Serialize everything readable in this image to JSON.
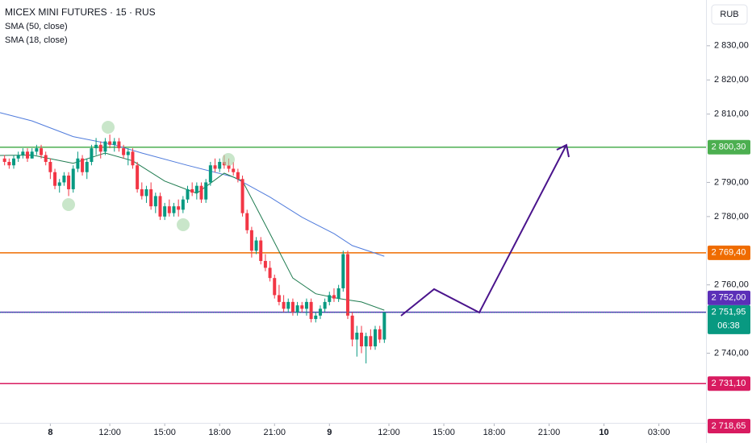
{
  "chart_data": {
    "type": "candlestick",
    "title": "MICEX MINI FUTURES · 15 · RUS",
    "currency": "RUB",
    "indicators": [
      {
        "name": "SMA (50, close)",
        "color": "#4f7bdc",
        "x": [
          -11,
          -4,
          5,
          14,
          20,
          30,
          40,
          48,
          55,
          62,
          66,
          73
        ],
        "values": [
          2810.4,
          2808,
          2803.4,
          2801,
          2798.6,
          2795,
          2791.6,
          2785.7,
          2779.8,
          2775,
          2771.5,
          2768.4
        ]
      },
      {
        "name": "SMA (18, close)",
        "color": "#1e7b4f",
        "x": [
          -11,
          -4,
          5,
          12,
          18,
          25,
          32,
          38,
          42,
          48,
          53,
          58,
          63,
          68,
          73
        ],
        "values": [
          2797.9,
          2798,
          2795.6,
          2798.6,
          2796.3,
          2790.4,
          2786.8,
          2792.7,
          2790.4,
          2775,
          2762,
          2757.4,
          2756,
          2755,
          2752.6
        ]
      }
    ],
    "up_color": "#089981",
    "down_color": "#f23645",
    "x": [
      -10,
      -9,
      -8,
      -7,
      -6,
      -5,
      -4,
      -3,
      -2,
      -1,
      0,
      1,
      2,
      3,
      4,
      5,
      6,
      7,
      8,
      9,
      10,
      11,
      12,
      13,
      14,
      15,
      16,
      17,
      18,
      19,
      20,
      21,
      22,
      23,
      24,
      25,
      26,
      27,
      28,
      29,
      30,
      31,
      32,
      33,
      34,
      35,
      36,
      37,
      38,
      39,
      40,
      41,
      42,
      43,
      44,
      45,
      46,
      47,
      48,
      49,
      50,
      51,
      52,
      53,
      54,
      55,
      56,
      57,
      58,
      59,
      60,
      61,
      62,
      63,
      64,
      65,
      66,
      67,
      68,
      69,
      70,
      71,
      72,
      73
    ],
    "open": [
      2797,
      2796,
      2795,
      2797,
      2798,
      2799,
      2797,
      2799,
      2800,
      2798,
      2796,
      2793,
      2789,
      2790,
      2792,
      2788,
      2794,
      2797,
      2793,
      2796,
      2800,
      2801,
      2799,
      2802,
      2801,
      2802,
      2800,
      2798,
      2799,
      2795,
      2788,
      2786,
      2788,
      2783,
      2786,
      2780,
      2783,
      2781,
      2783,
      2782,
      2785,
      2788,
      2787,
      2789,
      2785,
      2790,
      2795,
      2794,
      2796,
      2795,
      2794,
      2793,
      2791,
      2781,
      2776,
      2770,
      2773,
      2767,
      2765,
      2762,
      2757,
      2755,
      2753,
      2755,
      2752,
      2754,
      2753,
      2755,
      2750,
      2751,
      2753,
      2755,
      2757,
      2756,
      2759,
      2769,
      2751,
      2744,
      2746,
      2742,
      2745,
      2742,
      2747,
      2744
    ],
    "high": [
      2798,
      2797,
      2798,
      2799,
      2800,
      2800,
      2800,
      2801,
      2801,
      2799,
      2797,
      2794,
      2791,
      2793,
      2793,
      2795,
      2799,
      2798,
      2797,
      2801,
      2803,
      2802,
      2803,
      2804,
      2803,
      2803,
      2801,
      2800,
      2800,
      2796,
      2790,
      2789,
      2790,
      2787,
      2787,
      2784,
      2785,
      2784,
      2785,
      2786,
      2789,
      2790,
      2790,
      2790,
      2791,
      2796,
      2797,
      2797,
      2798,
      2797,
      2796,
      2794,
      2792,
      2782,
      2777,
      2774,
      2774,
      2769,
      2767,
      2763,
      2760,
      2757,
      2756,
      2756,
      2755,
      2755,
      2756,
      2756,
      2752,
      2754,
      2756,
      2758,
      2759,
      2760,
      2770,
      2770,
      2752,
      2748,
      2748,
      2746,
      2747,
      2748,
      2748,
      2752
    ],
    "low": [
      2795,
      2794,
      2794,
      2796,
      2797,
      2796,
      2797,
      2798,
      2797,
      2795,
      2791,
      2788,
      2787,
      2789,
      2786,
      2787,
      2793,
      2792,
      2791,
      2795,
      2798,
      2797,
      2798,
      2800,
      2799,
      2799,
      2797,
      2795,
      2794,
      2787,
      2785,
      2784,
      2782,
      2781,
      2779,
      2779,
      2780,
      2780,
      2780,
      2781,
      2784,
      2786,
      2785,
      2784,
      2784,
      2789,
      2793,
      2793,
      2794,
      2793,
      2792,
      2790,
      2780,
      2775,
      2768,
      2769,
      2766,
      2764,
      2761,
      2756,
      2754,
      2752,
      2752,
      2751,
      2751,
      2752,
      2751,
      2749,
      2749,
      2750,
      2752,
      2754,
      2755,
      2755,
      2758,
      2750,
      2742,
      2739,
      2740,
      2737,
      2741,
      2741,
      2743,
      2743
    ],
    "close": [
      2796,
      2795,
      2797,
      2798,
      2799,
      2797,
      2799,
      2800,
      2798,
      2796,
      2793,
      2789,
      2790,
      2792,
      2788,
      2794,
      2797,
      2793,
      2796,
      2800,
      2801,
      2799,
      2802,
      2801,
      2802,
      2800,
      2798,
      2799,
      2795,
      2788,
      2786,
      2788,
      2783,
      2786,
      2780,
      2783,
      2781,
      2783,
      2782,
      2785,
      2788,
      2787,
      2789,
      2785,
      2790,
      2795,
      2794,
      2796,
      2795,
      2794,
      2793,
      2791,
      2781,
      2776,
      2770,
      2773,
      2767,
      2765,
      2762,
      2757,
      2755,
      2753,
      2755,
      2752,
      2754,
      2753,
      2755,
      2750,
      2751,
      2753,
      2755,
      2757,
      2756,
      2759,
      2769,
      2751,
      2744,
      2746,
      2742,
      2745,
      2742,
      2747,
      2744,
      2751.95
    ],
    "levels": [
      {
        "value": 2800.3,
        "label": "2 800,30",
        "color": "#4caf50"
      },
      {
        "value": 2769.4,
        "label": "2 769,40",
        "color": "#ef6c00"
      },
      {
        "value": 2752.0,
        "label": "2 752,00",
        "color": "#5b2fb8"
      },
      {
        "value": 2731.1,
        "label": "2 731,10",
        "color": "#d81b60"
      }
    ],
    "last_price": {
      "value": 2751.95,
      "label": "2 751,95",
      "countdown": "06:38",
      "color": "#089981"
    },
    "low_marker": {
      "value": 2718.65,
      "label": "2 718,65",
      "color": "#d81b60"
    },
    "xlim": [
      -11,
      143.3
    ],
    "ylim": [
      2719.6,
      2843.4
    ],
    "xticks": [
      {
        "value": 0,
        "label": "8"
      },
      {
        "value": 13,
        "label": "12:00"
      },
      {
        "value": 25,
        "label": "15:00"
      },
      {
        "value": 37,
        "label": "18:00"
      },
      {
        "value": 49,
        "label": "21:00"
      },
      {
        "value": 61,
        "label": "9"
      },
      {
        "value": 74,
        "label": "12:00"
      },
      {
        "value": 86,
        "label": "15:00"
      },
      {
        "value": 97,
        "label": "18:00"
      },
      {
        "value": 109,
        "label": "21:00"
      },
      {
        "value": 121,
        "label": "10"
      },
      {
        "value": 133,
        "label": "03:00"
      }
    ],
    "yticks": [
      {
        "value": 2740,
        "label": "2 740,00"
      },
      {
        "value": 2760,
        "label": "2 760,00"
      },
      {
        "value": 2780,
        "label": "2 780,00"
      },
      {
        "value": 2790,
        "label": "2 790,00"
      },
      {
        "value": 2810,
        "label": "2 810,00"
      },
      {
        "value": 2820,
        "label": "2 820,00"
      },
      {
        "value": 2830,
        "label": "2 830,00"
      }
    ]
  }
}
